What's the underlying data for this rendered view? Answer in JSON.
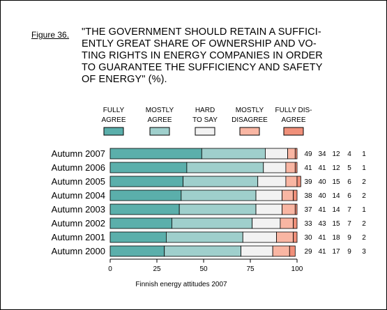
{
  "figure": {
    "label": "Figure 36.",
    "title_lines": [
      "\"THE GOVERNMENT SHOULD RETAIN A SUFFICI-",
      "ENTLY GREAT SHARE OF OWNERSHIP AND VO-",
      "TING RIGHTS IN ENERGY COMPANIES IN ORDER",
      "TO GUARANTEE THE SUFFICIENCY AND SAFETY",
      "OF ENERGY\" (%)."
    ]
  },
  "footer": "Finnish energy attitudes 2007",
  "chart_data": {
    "type": "bar",
    "orientation": "horizontal",
    "stacked": true,
    "title": "\"THE GOVERNMENT SHOULD RETAIN A SUFFICIENTLY GREAT SHARE OF OWNERSHIP AND VOTING RIGHTS IN ENERGY COMPANIES IN ORDER TO GUARANTEE THE SUFFICIENCY AND SAFETY OF ENERGY\" (%).",
    "xlabel": "",
    "ylabel": "",
    "xlim": [
      0,
      100
    ],
    "xticks": [
      0,
      25,
      50,
      75,
      100
    ],
    "grid": false,
    "legend_position": "top",
    "categories": [
      "Autumn 2007",
      "Autumn 2006",
      "Autumn 2005",
      "Autumn 2004",
      "Autumn 2003",
      "Autumn 2002",
      "Autumn 2001",
      "Autumn 2000"
    ],
    "series": [
      {
        "name": "FULLY AGREE",
        "legend_lines": [
          "FULLY",
          "AGREE"
        ],
        "color": "#5bafab",
        "values": [
          49,
          41,
          39,
          38,
          37,
          33,
          30,
          29
        ]
      },
      {
        "name": "MOSTLY AGREE",
        "legend_lines": [
          "MOSTLY",
          "AGREE"
        ],
        "color": "#9fcfcc",
        "values": [
          34,
          41,
          40,
          40,
          41,
          43,
          41,
          41
        ]
      },
      {
        "name": "HARD TO SAY",
        "legend_lines": [
          "HARD",
          "TO SAY"
        ],
        "color": "#f2f2f2",
        "values": [
          12,
          12,
          15,
          14,
          14,
          15,
          18,
          17
        ]
      },
      {
        "name": "MOSTLY DISAGREE",
        "legend_lines": [
          "MOSTLY",
          "DISAGREE"
        ],
        "color": "#f9b6a3",
        "values": [
          4,
          5,
          6,
          6,
          7,
          7,
          9,
          9
        ]
      },
      {
        "name": "FULLY DISAGREE",
        "legend_lines": [
          "FULLY DIS-",
          "AGREE"
        ],
        "color": "#f0907a",
        "values": [
          1,
          1,
          2,
          2,
          1,
          2,
          2,
          3
        ]
      }
    ]
  }
}
